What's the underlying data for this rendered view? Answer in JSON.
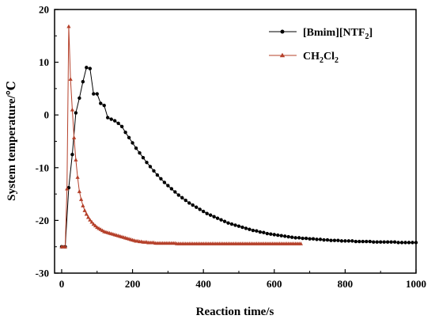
{
  "chart_data": {
    "type": "line",
    "xlabel": "Reaction time/s",
    "ylabel": "System temperature/℃",
    "xlim": [
      -20,
      1000
    ],
    "ylim": [
      -30,
      20
    ],
    "xticks": [
      0,
      200,
      400,
      600,
      800,
      1000
    ],
    "yticks": [
      -30,
      -20,
      -10,
      0,
      10,
      20
    ],
    "grid": false,
    "legend_position": "top-right",
    "series": [
      {
        "name": "[Bmim][NTF",
        "name_sub": "2",
        "name_close": "]",
        "color": "#000000",
        "marker": "circle",
        "x": [
          0,
          10,
          20,
          30,
          40,
          50,
          60,
          70,
          80,
          90,
          100,
          110,
          120,
          130,
          140,
          150,
          160,
          170,
          180,
          190,
          200,
          210,
          220,
          230,
          240,
          250,
          260,
          270,
          280,
          290,
          300,
          310,
          320,
          330,
          340,
          350,
          360,
          370,
          380,
          390,
          400,
          410,
          420,
          430,
          440,
          450,
          460,
          470,
          480,
          490,
          500,
          510,
          520,
          530,
          540,
          550,
          560,
          570,
          580,
          590,
          600,
          610,
          620,
          630,
          640,
          650,
          660,
          670,
          680,
          690,
          700,
          710,
          720,
          730,
          740,
          750,
          760,
          770,
          780,
          790,
          800,
          810,
          820,
          830,
          840,
          850,
          860,
          870,
          880,
          890,
          900,
          910,
          920,
          930,
          940,
          950,
          960,
          970,
          980,
          990,
          1000
        ],
        "y": [
          -25.0,
          -25.0,
          -13.8,
          -7.5,
          0.4,
          3.2,
          6.3,
          9.0,
          8.8,
          4.0,
          4.0,
          2.2,
          1.8,
          -0.5,
          -0.8,
          -1.1,
          -1.6,
          -2.2,
          -3.3,
          -4.3,
          -5.3,
          -6.3,
          -7.2,
          -8.1,
          -9.0,
          -9.8,
          -10.6,
          -11.4,
          -12.1,
          -12.8,
          -13.4,
          -14.0,
          -14.6,
          -15.2,
          -15.7,
          -16.2,
          -16.7,
          -17.1,
          -17.5,
          -17.9,
          -18.3,
          -18.7,
          -19.0,
          -19.3,
          -19.6,
          -19.9,
          -20.2,
          -20.5,
          -20.7,
          -20.9,
          -21.1,
          -21.3,
          -21.5,
          -21.7,
          -21.9,
          -22.0,
          -22.2,
          -22.3,
          -22.5,
          -22.6,
          -22.7,
          -22.8,
          -22.9,
          -23.0,
          -23.1,
          -23.2,
          -23.3,
          -23.3,
          -23.4,
          -23.4,
          -23.5,
          -23.5,
          -23.6,
          -23.6,
          -23.7,
          -23.7,
          -23.8,
          -23.8,
          -23.8,
          -23.9,
          -23.9,
          -23.9,
          -23.9,
          -24.0,
          -24.0,
          -24.0,
          -24.0,
          -24.0,
          -24.1,
          -24.1,
          -24.1,
          -24.1,
          -24.1,
          -24.1,
          -24.1,
          -24.2,
          -24.2,
          -24.2,
          -24.2,
          -24.2,
          -24.2
        ]
      },
      {
        "name": "CH",
        "name_sub": "2",
        "name_mid": "Cl",
        "name_sub2": "2",
        "color": "#b5402a",
        "marker": "triangle",
        "x": [
          0,
          5,
          10,
          15,
          20,
          25,
          30,
          35,
          40,
          45,
          50,
          55,
          60,
          65,
          70,
          75,
          80,
          85,
          90,
          95,
          100,
          105,
          110,
          115,
          120,
          125,
          130,
          135,
          140,
          145,
          150,
          155,
          160,
          165,
          170,
          175,
          180,
          185,
          190,
          195,
          200,
          205,
          210,
          215,
          220,
          225,
          230,
          235,
          240,
          245,
          250,
          255,
          260,
          265,
          270,
          275,
          280,
          285,
          290,
          295,
          300,
          305,
          310,
          315,
          320,
          325,
          330,
          335,
          340,
          345,
          350,
          355,
          360,
          365,
          370,
          375,
          380,
          385,
          390,
          395,
          400,
          405,
          410,
          415,
          420,
          425,
          430,
          435,
          440,
          445,
          450,
          455,
          460,
          465,
          470,
          475,
          480,
          485,
          490,
          495,
          500,
          505,
          510,
          515,
          520,
          525,
          530,
          535,
          540,
          545,
          550,
          555,
          560,
          565,
          570,
          575,
          580,
          585,
          590,
          595,
          600,
          605,
          610,
          615,
          620,
          625,
          630,
          635,
          640,
          645,
          650,
          655,
          660,
          665,
          670,
          675
        ],
        "y": [
          -25.0,
          -25.0,
          -25.0,
          -14.0,
          16.8,
          6.8,
          1.0,
          -4.3,
          -8.5,
          -11.8,
          -14.5,
          -16.0,
          -17.2,
          -18.1,
          -18.8,
          -19.4,
          -19.9,
          -20.3,
          -20.7,
          -21.0,
          -21.3,
          -21.5,
          -21.7,
          -21.9,
          -22.1,
          -22.2,
          -22.3,
          -22.4,
          -22.5,
          -22.6,
          -22.7,
          -22.8,
          -22.9,
          -23.0,
          -23.1,
          -23.2,
          -23.3,
          -23.4,
          -23.5,
          -23.6,
          -23.7,
          -23.8,
          -23.9,
          -23.9,
          -24.0,
          -24.0,
          -24.1,
          -24.1,
          -24.1,
          -24.2,
          -24.2,
          -24.2,
          -24.2,
          -24.3,
          -24.3,
          -24.3,
          -24.3,
          -24.3,
          -24.3,
          -24.3,
          -24.3,
          -24.3,
          -24.3,
          -24.3,
          -24.3,
          -24.4,
          -24.4,
          -24.4,
          -24.4,
          -24.4,
          -24.4,
          -24.4,
          -24.4,
          -24.4,
          -24.4,
          -24.4,
          -24.4,
          -24.4,
          -24.4,
          -24.4,
          -24.4,
          -24.4,
          -24.4,
          -24.4,
          -24.4,
          -24.4,
          -24.4,
          -24.4,
          -24.4,
          -24.4,
          -24.4,
          -24.4,
          -24.4,
          -24.4,
          -24.4,
          -24.4,
          -24.4,
          -24.4,
          -24.4,
          -24.4,
          -24.4,
          -24.4,
          -24.4,
          -24.4,
          -24.4,
          -24.4,
          -24.4,
          -24.4,
          -24.4,
          -24.4,
          -24.4,
          -24.4,
          -24.4,
          -24.4,
          -24.4,
          -24.4,
          -24.4,
          -24.4,
          -24.4,
          -24.4,
          -24.4,
          -24.4,
          -24.4,
          -24.4,
          -24.4,
          -24.4,
          -24.4,
          -24.4,
          -24.4,
          -24.4,
          -24.4,
          -24.4,
          -24.4,
          -24.4,
          -24.4,
          -24.4
        ]
      }
    ]
  }
}
